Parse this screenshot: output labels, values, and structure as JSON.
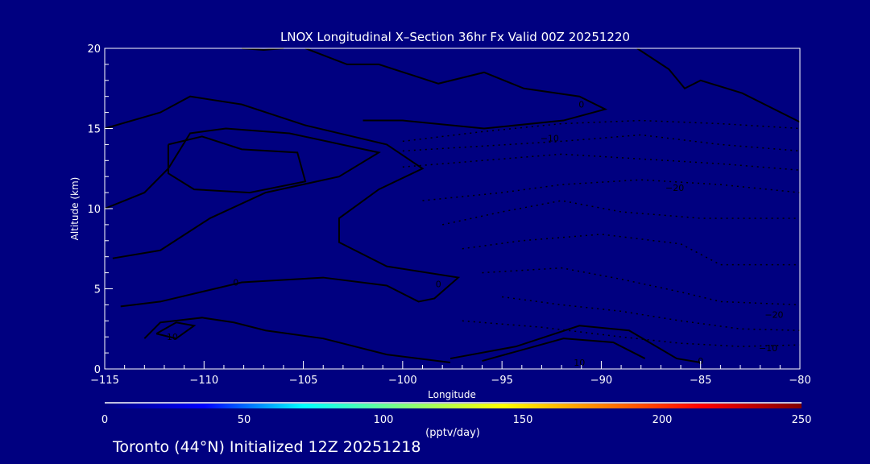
{
  "chart_data": {
    "type": "contour",
    "title": "LNOX Longitudinal X–Section 36hr  Fx Valid 00Z 20251220",
    "xlabel": "Longitude",
    "ylabel": "Altitude (km)",
    "xlim": [
      -115,
      -80
    ],
    "ylim": [
      0,
      20
    ],
    "xticks": [
      "−115",
      "−110",
      "−105",
      "−100",
      "−95",
      "−90",
      "−85",
      "−80"
    ],
    "xtick_values": [
      -115,
      -110,
      -105,
      -100,
      -95,
      -90,
      -85,
      -80
    ],
    "yticks": [
      "0",
      "5",
      "10",
      "15",
      "20"
    ],
    "ytick_values": [
      0,
      5,
      10,
      15,
      20
    ],
    "colorbar": {
      "label": "(pptv/day)",
      "range": [
        0,
        250
      ],
      "ticks": [
        "0",
        "50",
        "100",
        "150",
        "200",
        "250"
      ],
      "tick_values": [
        0,
        50,
        100,
        150,
        200,
        250
      ],
      "colors": [
        "#000080",
        "#0000ff",
        "#00ffff",
        "#80ff80",
        "#ffff00",
        "#ff8000",
        "#ff0000",
        "#800000"
      ]
    },
    "solid_contours": [
      [
        [
          -115,
          15.0
        ],
        [
          -112.2,
          16.0
        ],
        [
          -110.7,
          17.0
        ],
        [
          -108.1,
          16.5
        ],
        [
          -104.9,
          15.2
        ],
        [
          -100.8,
          14.0
        ],
        [
          -99.0,
          12.5
        ],
        [
          -101.2,
          11.2
        ],
        [
          -103.2,
          9.4
        ],
        [
          -103.2,
          7.9
        ],
        [
          -100.8,
          6.4
        ],
        [
          -97.2,
          5.7
        ],
        [
          -98.4,
          4.4
        ],
        [
          -99.2,
          4.2
        ],
        [
          -100.8,
          5.2
        ],
        [
          -104.0,
          5.7
        ],
        [
          -108.1,
          5.4
        ],
        [
          -112.2,
          4.2
        ],
        [
          -114.2,
          3.9
        ]
      ],
      [
        [
          -115,
          10.0
        ],
        [
          -113,
          11.0
        ],
        [
          -111.8,
          12.5
        ],
        [
          -110.7,
          14.7
        ],
        [
          -108.9,
          15.0
        ],
        [
          -105.7,
          14.7
        ],
        [
          -101.2,
          13.5
        ],
        [
          -103.2,
          12.0
        ],
        [
          -106.9,
          11.0
        ],
        [
          -109.7,
          9.4
        ],
        [
          -112.2,
          7.4
        ],
        [
          -114.6,
          6.9
        ]
      ],
      [
        [
          -111.8,
          14.0
        ],
        [
          -110.1,
          14.5
        ],
        [
          -108.1,
          13.7
        ],
        [
          -105.3,
          13.5
        ],
        [
          -104.9,
          11.7
        ],
        [
          -107.7,
          11.0
        ],
        [
          -110.5,
          11.2
        ],
        [
          -111.8,
          12.2
        ],
        [
          -111.8,
          14.0
        ]
      ],
      [
        [
          -113,
          1.9
        ],
        [
          -112.2,
          2.9
        ],
        [
          -110.1,
          3.2
        ],
        [
          -108.5,
          2.9
        ],
        [
          -106.9,
          2.4
        ],
        [
          -104,
          1.9
        ],
        [
          -100.8,
          0.9
        ],
        [
          -97.6,
          0.4
        ]
      ],
      [
        [
          -112.4,
          2.2
        ],
        [
          -111.4,
          2.9
        ],
        [
          -110.5,
          2.7
        ],
        [
          -111.4,
          1.9
        ],
        [
          -112.4,
          2.2
        ]
      ],
      [
        [
          -97.6,
          0.65
        ],
        [
          -94.3,
          1.4
        ],
        [
          -91.1,
          2.7
        ],
        [
          -88.6,
          2.4
        ],
        [
          -86.2,
          0.65
        ],
        [
          -85,
          0.4
        ]
      ],
      [
        [
          -96,
          0.5
        ],
        [
          -91.9,
          1.9
        ],
        [
          -89.4,
          1.66
        ],
        [
          -87.8,
          0.65
        ]
      ],
      [
        [
          -88.2,
          20
        ],
        [
          -86.6,
          18.7
        ],
        [
          -85.8,
          17.5
        ],
        [
          -85,
          18
        ],
        [
          -82.9,
          17.2
        ],
        [
          -80,
          15.4
        ]
      ],
      [
        [
          -104.9,
          20
        ],
        [
          -102.8,
          19
        ],
        [
          -101.2,
          19
        ],
        [
          -98.2,
          17.8
        ],
        [
          -95.9,
          18.5
        ],
        [
          -93.9,
          17.5
        ],
        [
          -91.1,
          17
        ],
        [
          -89.8,
          16.2
        ],
        [
          -91.9,
          15.5
        ],
        [
          -95.9,
          15
        ],
        [
          -100,
          15.5
        ],
        [
          -102,
          15.5
        ]
      ],
      [
        [
          -108.1,
          20
        ],
        [
          -107,
          19.9
        ],
        [
          -106,
          20
        ]
      ]
    ],
    "dashed_contours": [
      [
        [
          -100,
          14.2
        ],
        [
          -96,
          14.8
        ],
        [
          -92,
          15.3
        ],
        [
          -88,
          15.5
        ],
        [
          -84,
          15.3
        ],
        [
          -80,
          15.0
        ]
      ],
      [
        [
          -100,
          13.6
        ],
        [
          -96,
          13.9
        ],
        [
          -92,
          14.2
        ],
        [
          -88,
          14.6
        ],
        [
          -84,
          14.0
        ],
        [
          -80,
          13.6
        ]
      ],
      [
        [
          -100,
          12.6
        ],
        [
          -96,
          13.0
        ],
        [
          -92,
          13.4
        ],
        [
          -88,
          13.1
        ],
        [
          -84,
          12.8
        ],
        [
          -80,
          12.4
        ]
      ],
      [
        [
          -99,
          10.5
        ],
        [
          -95,
          11.0
        ],
        [
          -92,
          11.5
        ],
        [
          -88,
          11.8
        ],
        [
          -84,
          11.5
        ],
        [
          -80,
          11.0
        ]
      ],
      [
        [
          -98,
          9.0
        ],
        [
          -95,
          9.8
        ],
        [
          -92,
          10.5
        ],
        [
          -89,
          9.8
        ],
        [
          -85,
          9.4
        ],
        [
          -80,
          9.4
        ]
      ],
      [
        [
          -97,
          7.5
        ],
        [
          -94,
          8.0
        ],
        [
          -90,
          8.4
        ],
        [
          -86,
          7.8
        ],
        [
          -84,
          6.5
        ],
        [
          -80,
          6.5
        ]
      ],
      [
        [
          -96,
          6.0
        ],
        [
          -92,
          6.3
        ],
        [
          -89,
          5.6
        ],
        [
          -86,
          4.8
        ],
        [
          -84,
          4.2
        ],
        [
          -80,
          4.0
        ]
      ],
      [
        [
          -95,
          4.5
        ],
        [
          -92,
          4.0
        ],
        [
          -89,
          3.6
        ],
        [
          -86,
          3.0
        ],
        [
          -83,
          2.5
        ],
        [
          -80,
          2.4
        ]
      ],
      [
        [
          -97,
          3.0
        ],
        [
          -93,
          2.6
        ],
        [
          -89,
          2.0
        ],
        [
          -86,
          1.6
        ],
        [
          -83,
          1.4
        ],
        [
          -80,
          1.5
        ]
      ]
    ],
    "labels": [
      {
        "text": "0",
        "lon": -91.0,
        "alt": 16.5
      },
      {
        "text": "−10",
        "lon": -92.6,
        "alt": 14.4
      },
      {
        "text": "−20",
        "lon": -86.3,
        "alt": 11.3
      },
      {
        "text": "−20",
        "lon": -81.3,
        "alt": 3.4
      },
      {
        "text": "−10",
        "lon": -81.6,
        "alt": 1.3
      },
      {
        "text": "10",
        "lon": -91.1,
        "alt": 0.4
      },
      {
        "text": "0",
        "lon": -85.0,
        "alt": 0.5
      },
      {
        "text": "0",
        "lon": -108.4,
        "alt": 5.4
      },
      {
        "text": "0",
        "lon": -98.2,
        "alt": 5.3
      },
      {
        "text": "10",
        "lon": -111.6,
        "alt": 2.0
      }
    ]
  },
  "footer": "Toronto (44°N) Initialized 12Z 20251218"
}
